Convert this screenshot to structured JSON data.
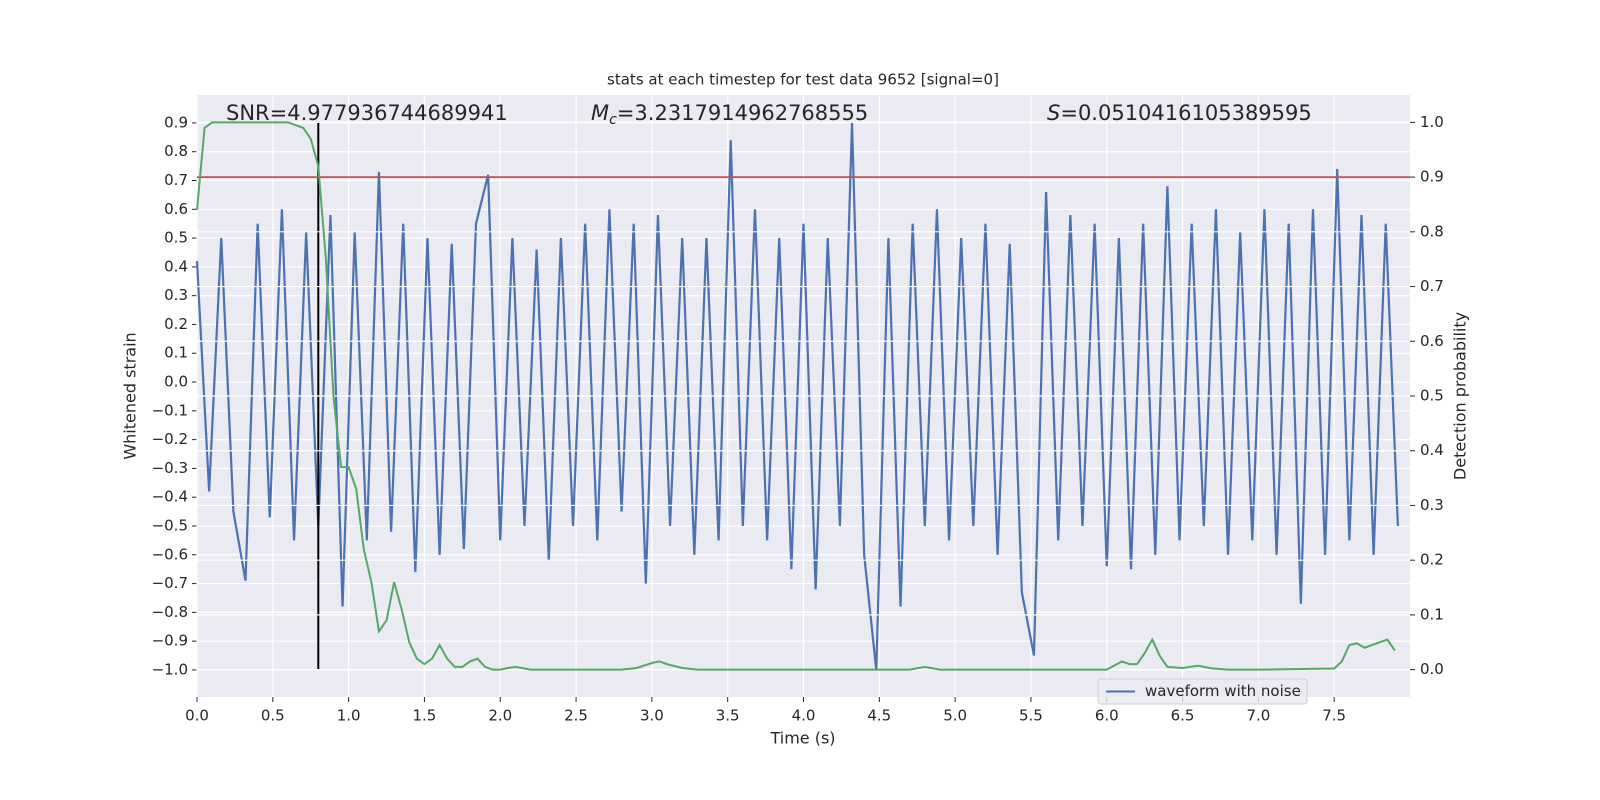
{
  "chart_data": {
    "type": "line",
    "title": "stats at each timestep for test data 9652 [signal=0]",
    "xlabel": "Time (s)",
    "ylabel": "Whitened strain",
    "y2label": "Detection probability",
    "annotations": [
      {
        "text": "SNR=4.977936744689941"
      },
      {
        "symbol": "M",
        "subscript": "c",
        "text": "=3.2317914962768555"
      },
      {
        "symbol": "S",
        "text": "=0.0510416105389595"
      }
    ],
    "xlim": [
      0,
      8.0
    ],
    "ylim": [
      -1.094,
      0.997
    ],
    "y2lim": [
      -0.05,
      1.05
    ],
    "xticks": [
      {
        "value": 0,
        "label": "0.0"
      },
      0.5,
      {
        "value": 1,
        "label": "1.0"
      },
      1.5,
      {
        "value": 2,
        "label": "2.0"
      },
      2.5,
      {
        "value": 3,
        "label": "3.0"
      },
      3.5,
      {
        "value": 4,
        "label": "4.0"
      },
      4.5,
      {
        "value": 5,
        "label": "5.0"
      },
      5.5,
      {
        "value": 6,
        "label": "6.0"
      },
      6.5,
      {
        "value": 7,
        "label": "7.0"
      },
      7.5
    ],
    "yticks": [
      {
        "value": -1.0,
        "label": "−1.0"
      },
      {
        "value": -0.9,
        "label": "−0.9"
      },
      {
        "value": -0.8,
        "label": "−0.8"
      },
      {
        "value": -0.7,
        "label": "−0.7"
      },
      {
        "value": -0.6,
        "label": "−0.6"
      },
      {
        "value": -0.5,
        "label": "−0.5"
      },
      {
        "value": -0.4,
        "label": "−0.4"
      },
      {
        "value": -0.3,
        "label": "−0.3"
      },
      {
        "value": -0.2,
        "label": "−0.2"
      },
      {
        "value": -0.1,
        "label": "−0.1"
      },
      {
        "value": 0,
        "label": "0.0"
      },
      0.1,
      0.2,
      0.3,
      0.4,
      0.5,
      0.6,
      0.7,
      0.8,
      0.9
    ],
    "y2ticks": [
      {
        "value": 0,
        "label": "0.0"
      },
      0.1,
      0.2,
      0.3,
      0.4,
      0.5,
      0.6,
      0.7,
      0.8,
      0.9,
      {
        "value": 1,
        "label": "1.0"
      }
    ],
    "grid": true,
    "legend": "lower right",
    "threshold": {
      "value": 0.9,
      "axis": "y2",
      "color": "#c44e52"
    },
    "vline": {
      "x": 0.8,
      "ymin": -1.0,
      "ymax": 0.9,
      "color": "#000000"
    },
    "series": [
      {
        "name": "waveform with noise",
        "color": "#4c72b0",
        "x": [
          0,
          0.08,
          0.16,
          0.24,
          0.32,
          0.4,
          0.48,
          0.56,
          0.64,
          0.72,
          0.8,
          0.88,
          0.96,
          1.04,
          1.12,
          1.2,
          1.28,
          1.36,
          1.44,
          1.52,
          1.6,
          1.68,
          1.76,
          1.84,
          1.92,
          2.0,
          2.08,
          2.16,
          2.24,
          2.32,
          2.4,
          2.48,
          2.56,
          2.64,
          2.72,
          2.8,
          2.88,
          2.96,
          3.04,
          3.12,
          3.2,
          3.28,
          3.36,
          3.44,
          3.52,
          3.6,
          3.68,
          3.76,
          3.84,
          3.92,
          4.0,
          4.08,
          4.16,
          4.24,
          4.32,
          4.4,
          4.48,
          4.56,
          4.64,
          4.72,
          4.8,
          4.88,
          4.96,
          5.04,
          5.12,
          5.2,
          5.28,
          5.36,
          5.44,
          5.52,
          5.6,
          5.68,
          5.76,
          5.84,
          5.92,
          6.0,
          6.08,
          6.16,
          6.24,
          6.32,
          6.4,
          6.48,
          6.56,
          6.64,
          6.72,
          6.8,
          6.88,
          6.96,
          7.04,
          7.12,
          7.2,
          7.28,
          7.36,
          7.44,
          7.52,
          7.6,
          7.68,
          7.76,
          7.84,
          7.92
        ],
        "values": [
          0.42,
          -0.38,
          0.5,
          -0.45,
          -0.69,
          0.55,
          -0.47,
          0.6,
          -0.55,
          0.52,
          -0.5,
          0.58,
          -0.78,
          0.52,
          -0.55,
          0.73,
          -0.52,
          0.55,
          -0.66,
          0.5,
          -0.6,
          0.48,
          -0.58,
          0.55,
          0.72,
          -0.55,
          0.5,
          -0.5,
          0.46,
          -0.62,
          0.5,
          -0.5,
          0.55,
          -0.55,
          0.6,
          -0.45,
          0.55,
          -0.7,
          0.58,
          -0.5,
          0.5,
          -0.6,
          0.5,
          -0.55,
          0.84,
          -0.5,
          0.6,
          -0.55,
          0.5,
          -0.65,
          0.55,
          -0.72,
          0.5,
          -0.5,
          0.9,
          -0.6,
          -1.0,
          0.5,
          -0.78,
          0.55,
          -0.5,
          0.6,
          -0.55,
          0.5,
          -0.5,
          0.55,
          -0.6,
          0.48,
          -0.73,
          -0.95,
          0.66,
          -0.55,
          0.58,
          -0.5,
          0.55,
          -0.64,
          0.5,
          -0.65,
          0.55,
          -0.6,
          0.68,
          -0.55,
          0.55,
          -0.5,
          0.6,
          -0.6,
          0.52,
          -0.55,
          0.6,
          -0.6,
          0.55,
          -0.77,
          0.6,
          -0.6,
          0.74,
          -0.55,
          0.58,
          -0.6,
          0.55,
          -0.5
        ]
      },
      {
        "color": "#55a868",
        "axis": "y2",
        "x": [
          0,
          0.05,
          0.1,
          0.2,
          0.3,
          0.4,
          0.5,
          0.6,
          0.65,
          0.7,
          0.75,
          0.8,
          0.85,
          0.9,
          0.95,
          1.0,
          1.05,
          1.1,
          1.15,
          1.2,
          1.25,
          1.3,
          1.35,
          1.4,
          1.45,
          1.5,
          1.55,
          1.6,
          1.65,
          1.7,
          1.75,
          1.8,
          1.85,
          1.9,
          1.95,
          2.0,
          2.05,
          2.1,
          2.2,
          2.3,
          2.5,
          2.8,
          2.9,
          3.0,
          3.05,
          3.1,
          3.2,
          3.3,
          3.5,
          4.0,
          4.5,
          4.7,
          4.8,
          4.9,
          5.2,
          5.5,
          6.0,
          6.1,
          6.15,
          6.2,
          6.25,
          6.3,
          6.35,
          6.4,
          6.5,
          6.6,
          6.7,
          6.8,
          7.0,
          7.5,
          7.55,
          7.6,
          7.65,
          7.7,
          7.8,
          7.85,
          7.9
        ],
        "values": [
          0.84,
          0.99,
          1.0,
          1.0,
          1.0,
          1.0,
          1.0,
          1.0,
          0.995,
          0.99,
          0.97,
          0.92,
          0.75,
          0.5,
          0.37,
          0.37,
          0.33,
          0.22,
          0.16,
          0.07,
          0.09,
          0.16,
          0.11,
          0.05,
          0.02,
          0.01,
          0.02,
          0.045,
          0.02,
          0.005,
          0.005,
          0.015,
          0.02,
          0.005,
          0.0,
          0.0,
          0.003,
          0.005,
          0.0,
          0.0,
          0.0,
          0.0,
          0.003,
          0.012,
          0.015,
          0.01,
          0.003,
          0.0,
          0.0,
          0.0,
          0.0,
          0.0,
          0.005,
          0.0,
          0.0,
          0.0,
          0.0,
          0.015,
          0.01,
          0.01,
          0.03,
          0.055,
          0.025,
          0.005,
          0.003,
          0.007,
          0.002,
          0.0,
          0.0,
          0.002,
          0.015,
          0.045,
          0.048,
          0.04,
          0.05,
          0.055,
          0.035
        ]
      }
    ]
  }
}
